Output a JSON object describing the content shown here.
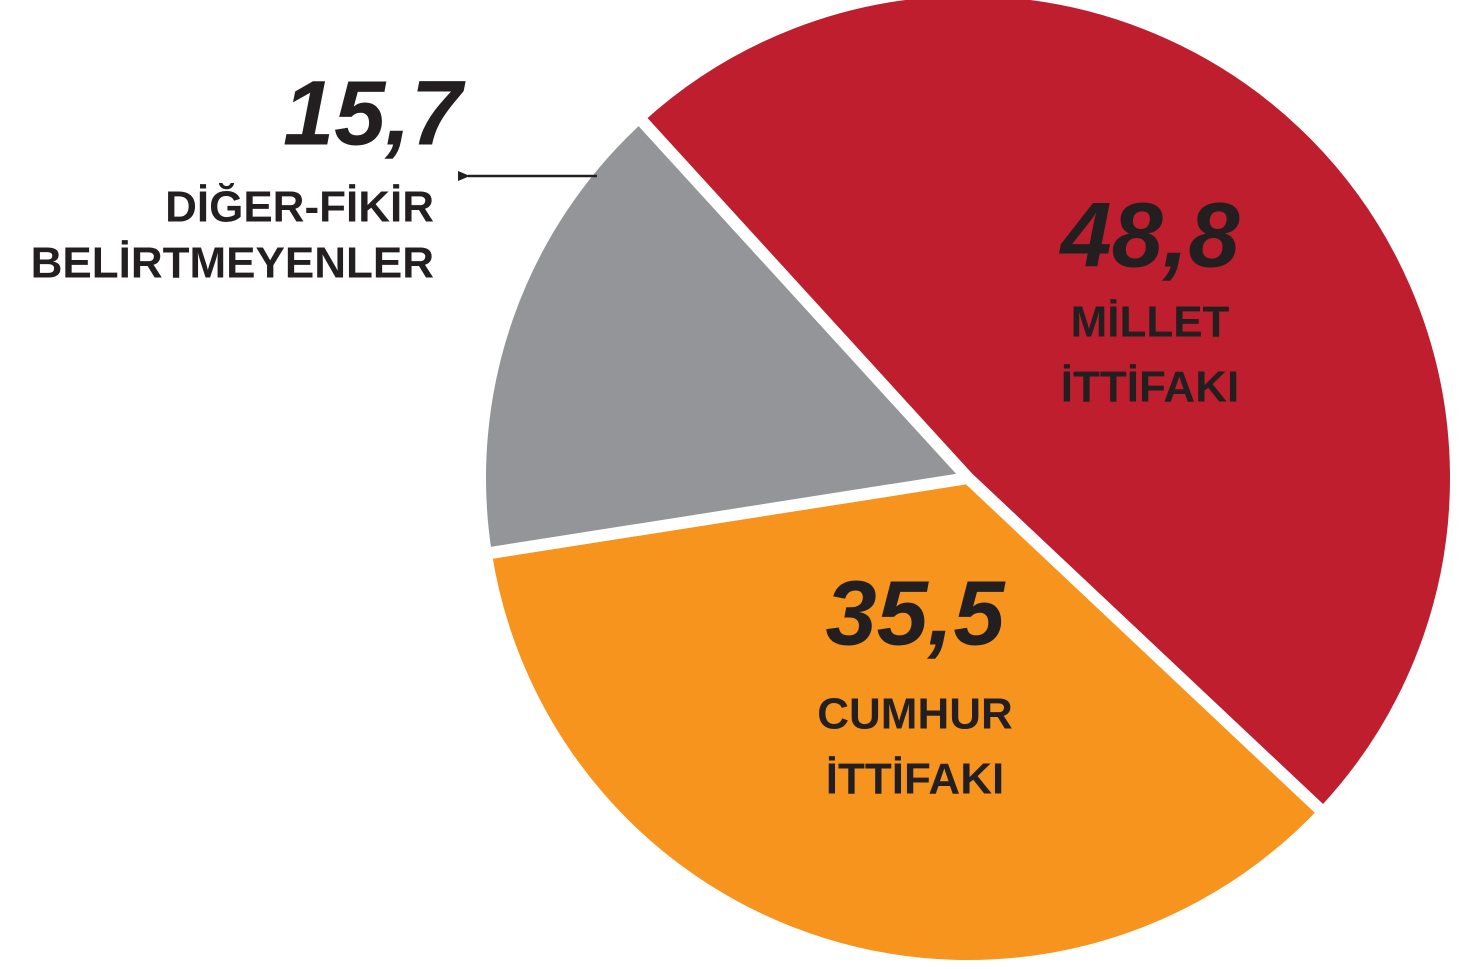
{
  "chart_data": {
    "type": "pie",
    "categories": [
      [
        "MİLLET",
        "İTTİFAKI"
      ],
      [
        "CUMHUR",
        "İTTİFAKI"
      ],
      [
        "DİĞER-FİKİR",
        "BELİRTMEYENLER"
      ]
    ],
    "values": [
      48.8,
      35.5,
      15.7
    ],
    "value_labels": [
      "48,8",
      "35,5",
      "15,7"
    ],
    "colors": [
      "#be1e2d",
      "#f7941d",
      "#939598"
    ]
  }
}
